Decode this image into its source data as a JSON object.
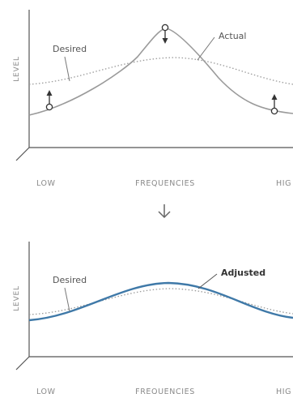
{
  "top_panel": {
    "y_axis_label": "LEVEL",
    "x_ticks": [
      "LOW",
      "FREQUENCIES",
      "HIG"
    ],
    "desired_label": "Desired",
    "actual_label": "Actual"
  },
  "bottom_panel": {
    "y_axis_label": "LEVEL",
    "x_ticks": [
      "LOW",
      "FREQUENCIES",
      "HIG"
    ],
    "desired_label": "Desired",
    "adjusted_label": "Adjusted"
  },
  "colors": {
    "axis": "#555555",
    "actual_curve": "#9a9a9a",
    "desired_curve": "#9a9a9a",
    "adjusted_curve": "#3f79a8",
    "arrow": "#333333"
  },
  "icons": {
    "between_panels": "arrow-down-icon"
  }
}
